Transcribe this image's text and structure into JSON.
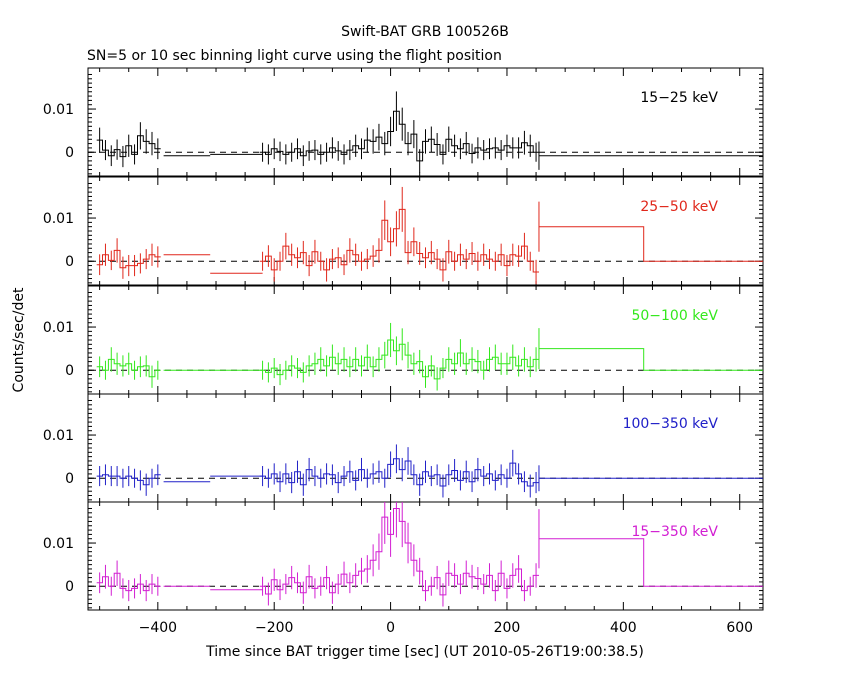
{
  "chart_data": {
    "type": "line",
    "title": "Swift-BAT GRB 100526B",
    "subtitle": "SN=5 or 10 sec binning light curve using the flight position",
    "xlabel": "Time since BAT trigger time [sec] (UT 2010-05-26T19:00:38.5)",
    "ylabel": "Counts/sec/det",
    "xlim": [
      -520,
      640
    ],
    "x_ticks": [
      -400,
      -200,
      0,
      200,
      400,
      600
    ],
    "x_tick_labels": [
      "−400",
      "−200",
      "0",
      "200",
      "400",
      "600"
    ],
    "y_tick_labels": [
      "0.01",
      "0"
    ],
    "y_ticks": [
      0.01,
      0
    ],
    "panels": [
      {
        "name": "15−25 keV",
        "color": "#000000",
        "ylim": [
          -0.0055,
          0.0195
        ],
        "series": [
          {
            "name": "binned",
            "x": [
              -500,
              -490,
              -480,
              -470,
              -460,
              -450,
              -440,
              -430,
              -420,
              -410,
              -400
            ],
            "y": [
              0.0028,
              0.0005,
              -0.0008,
              0.0006,
              -0.001,
              0.0015,
              -0.0005,
              0.0038,
              0.0025,
              0.002,
              0.0008
            ]
          },
          {
            "name": "long-before",
            "x": [
              -390,
              -310
            ],
            "y": [
              -0.0008,
              -0.0008
            ]
          },
          {
            "name": "quiet",
            "x": [
              -310,
              -220
            ],
            "y": [
              -0.0005,
              -0.0005
            ]
          },
          {
            "name": "binned2",
            "x": [
              -220,
              -210,
              -200,
              -190,
              -180,
              -170,
              -160,
              -150,
              -140,
              -130,
              -120,
              -110,
              -100,
              -90,
              -80,
              -70,
              -60,
              -50,
              -40,
              -30,
              -20,
              -10,
              0,
              10,
              20,
              30,
              40,
              50,
              60,
              70,
              80,
              90,
              100,
              110,
              120,
              130,
              140,
              150,
              160,
              170,
              180,
              190,
              200,
              210,
              220,
              230,
              240,
              250
            ],
            "y": [
              0.0,
              -0.0005,
              0.0008,
              0.0002,
              -0.0005,
              0.0,
              0.0008,
              -0.0008,
              0.0003,
              0.0005,
              -0.0005,
              0.0,
              0.001,
              0.0003,
              -0.0005,
              0.0005,
              0.0015,
              0.0008,
              0.0028,
              0.0025,
              0.0035,
              0.002,
              0.0048,
              0.0095,
              0.0065,
              0.002,
              0.0042,
              -0.002,
              0.0025,
              0.003,
              0.0018,
              -0.0005,
              0.003,
              0.0015,
              0.0008,
              0.002,
              -0.0003,
              0.001,
              0.0005,
              0.0008,
              0.001,
              0.0005,
              0.0015,
              0.001,
              0.001,
              0.0022,
              0.0015,
              0.0
            ]
          },
          {
            "name": "tail",
            "x": [
              255,
              435,
              640
            ],
            "y": [
              -0.0008,
              -0.0008,
              0.0
            ]
          }
        ]
      },
      {
        "name": "25−50 keV",
        "color": "#e0271b",
        "ylim": [
          -0.0055,
          0.0195
        ],
        "series": [
          {
            "name": "binned",
            "x": [
              -500,
              -490,
              -480,
              -470,
              -460,
              -450,
              -440,
              -430,
              -420,
              -410,
              -400
            ],
            "y": [
              -0.0008,
              0.0015,
              0.0002,
              0.0025,
              -0.0015,
              -0.001,
              -0.001,
              -0.0005,
              0.0005,
              0.0015,
              0.001
            ]
          },
          {
            "name": "long-before",
            "x": [
              -390,
              -310
            ],
            "y": [
              0.0015,
              0.0015
            ]
          },
          {
            "name": "quiet",
            "x": [
              -310,
              -220
            ],
            "y": [
              -0.0028,
              -0.0028
            ]
          },
          {
            "name": "binned2",
            "x": [
              -220,
              -210,
              -200,
              -190,
              -180,
              -170,
              -160,
              -150,
              -140,
              -130,
              -120,
              -110,
              -100,
              -90,
              -80,
              -70,
              -60,
              -50,
              -40,
              -30,
              -20,
              -10,
              0,
              10,
              20,
              30,
              40,
              50,
              60,
              70,
              80,
              90,
              100,
              110,
              120,
              130,
              140,
              150,
              160,
              170,
              180,
              190,
              200,
              210,
              220,
              230,
              240,
              250
            ],
            "y": [
              0.0,
              0.0012,
              -0.002,
              0.0,
              0.0035,
              0.0015,
              0.0008,
              0.002,
              -0.001,
              0.0022,
              0.0,
              -0.002,
              0.0005,
              0.0008,
              -0.0008,
              0.0025,
              0.0015,
              0.0,
              0.0005,
              0.0012,
              0.0025,
              0.0095,
              0.0045,
              0.0075,
              0.012,
              0.002,
              0.0045,
              0.0018,
              0.0008,
              0.002,
              0.0005,
              -0.002,
              0.0022,
              0.0,
              0.0015,
              0.0005,
              0.0018,
              0.0,
              0.0015,
              0.0005,
              0.0,
              0.0015,
              -0.001,
              0.0015,
              0.0012,
              0.0035,
              0.0,
              -0.0025
            ]
          },
          {
            "name": "tail",
            "x": [
              255,
              435,
              640
            ],
            "y": [
              0.008,
              0.0,
              0.0
            ]
          }
        ]
      },
      {
        "name": "50−100 keV",
        "color": "#33e81c",
        "ylim": [
          -0.0055,
          0.0195
        ],
        "series": [
          {
            "name": "binned",
            "x": [
              -500,
              -490,
              -480,
              -470,
              -460,
              -450,
              -440,
              -430,
              -420,
              -410,
              -400
            ],
            "y": [
              0.0008,
              0.0,
              0.0025,
              0.0015,
              0.001,
              0.0015,
              0.0,
              0.0008,
              0.001,
              -0.0015,
              0.0
            ]
          },
          {
            "name": "long-before",
            "x": [
              -390,
              -310
            ],
            "y": [
              0.0,
              0.0
            ]
          },
          {
            "name": "quiet",
            "x": [
              -310,
              -220
            ],
            "y": [
              0.0,
              0.0
            ]
          },
          {
            "name": "binned2",
            "x": [
              -220,
              -210,
              -200,
              -190,
              -180,
              -170,
              -160,
              -150,
              -140,
              -130,
              -120,
              -110,
              -100,
              -90,
              -80,
              -70,
              -60,
              -50,
              -40,
              -30,
              -20,
              -10,
              0,
              10,
              20,
              30,
              40,
              50,
              60,
              70,
              80,
              90,
              100,
              110,
              120,
              130,
              140,
              150,
              160,
              170,
              180,
              190,
              200,
              210,
              220,
              230,
              240,
              250
            ],
            "y": [
              0.0,
              -0.0005,
              0.0005,
              -0.001,
              0.0,
              0.001,
              0.0005,
              -0.0005,
              0.001,
              0.0015,
              0.0025,
              0.001,
              0.003,
              0.0015,
              0.0025,
              0.0008,
              0.0025,
              0.001,
              0.003,
              0.0008,
              0.0025,
              0.0035,
              0.007,
              0.0045,
              0.006,
              0.0035,
              0.0015,
              0.002,
              -0.0015,
              0.001,
              -0.002,
              0.0005,
              0.0025,
              0.0015,
              0.004,
              0.0015,
              0.0025,
              0.002,
              0.0,
              0.0025,
              0.003,
              0.0015,
              0.0015,
              0.003,
              0.001,
              0.0025,
              0.0008,
              0.0025
            ]
          },
          {
            "name": "tail",
            "x": [
              255,
              435,
              640
            ],
            "y": [
              0.005,
              0.0,
              0.0
            ]
          }
        ]
      },
      {
        "name": "100−350 keV",
        "color": "#2020c8",
        "ylim": [
          -0.0055,
          0.0195
        ],
        "series": [
          {
            "name": "binned",
            "x": [
              -500,
              -490,
              -480,
              -470,
              -460,
              -450,
              -440,
              -430,
              -420,
              -410,
              -400
            ],
            "y": [
              0.0005,
              0.0008,
              0.0005,
              0.0005,
              0.0,
              0.0005,
              0.0,
              -0.0005,
              -0.0015,
              0.0,
              0.0008
            ]
          },
          {
            "name": "long-before",
            "x": [
              -390,
              -310
            ],
            "y": [
              -0.0008,
              -0.0008
            ]
          },
          {
            "name": "quiet",
            "x": [
              -310,
              -220
            ],
            "y": [
              0.0005,
              0.0005
            ]
          },
          {
            "name": "binned2",
            "x": [
              -220,
              -210,
              -200,
              -190,
              -180,
              -170,
              -160,
              -150,
              -140,
              -130,
              -120,
              -110,
              -100,
              -90,
              -80,
              -70,
              -60,
              -50,
              -40,
              -30,
              -20,
              -10,
              0,
              10,
              20,
              30,
              40,
              50,
              60,
              70,
              80,
              90,
              100,
              110,
              120,
              130,
              140,
              150,
              160,
              170,
              180,
              190,
              200,
              210,
              220,
              230,
              240,
              250
            ],
            "y": [
              0.0005,
              0.0,
              0.001,
              -0.0008,
              0.001,
              -0.001,
              0.0015,
              -0.0015,
              0.002,
              0.0005,
              0.0,
              0.001,
              0.0008,
              -0.001,
              0.0005,
              0.0015,
              -0.0005,
              0.002,
              0.0,
              0.001,
              0.0015,
              0.0,
              0.0032,
              0.0045,
              0.002,
              0.004,
              0.0008,
              -0.0015,
              0.0015,
              0.0005,
              0.0008,
              -0.0018,
              0.0008,
              0.0018,
              -0.0005,
              0.0015,
              -0.0008,
              0.002,
              0.0005,
              0.001,
              -0.0005,
              0.0008,
              0.0,
              0.0035,
              0.001,
              -0.0008,
              -0.0018,
              -0.001
            ]
          },
          {
            "name": "tail",
            "x": [
              255,
              435,
              640
            ],
            "y": [
              0.0,
              0.0,
              0.0
            ]
          }
        ]
      },
      {
        "name": "15−350 keV",
        "color": "#d21ed2",
        "ylim": [
          -0.0055,
          0.0195
        ],
        "series": [
          {
            "name": "binned",
            "x": [
              -500,
              -490,
              -480,
              -470,
              -460,
              -450,
              -440,
              -430,
              -420,
              -410,
              -400
            ],
            "y": [
              0.0008,
              0.0022,
              0.0,
              0.003,
              -0.0005,
              -0.001,
              -0.0005,
              0.0005,
              -0.001,
              0.0005,
              0.0
            ]
          },
          {
            "name": "long-before",
            "x": [
              -390,
              -310
            ],
            "y": [
              0.0,
              0.0
            ]
          },
          {
            "name": "quiet",
            "x": [
              -310,
              -220
            ],
            "y": [
              -0.0008,
              -0.0008
            ]
          },
          {
            "name": "binned2",
            "x": [
              -220,
              -210,
              -200,
              -190,
              -180,
              -170,
              -160,
              -150,
              -140,
              -130,
              -120,
              -110,
              -100,
              -90,
              -80,
              -70,
              -60,
              -50,
              -40,
              -30,
              -20,
              -10,
              0,
              10,
              20,
              30,
              40,
              50,
              60,
              70,
              80,
              90,
              100,
              110,
              120,
              130,
              140,
              150,
              160,
              170,
              180,
              190,
              200,
              210,
              220,
              230,
              240,
              250
            ],
            "y": [
              0.0,
              -0.0018,
              0.0015,
              -0.0008,
              0.0005,
              0.002,
              0.0008,
              -0.0015,
              0.0022,
              -0.0005,
              0.0,
              0.002,
              -0.0015,
              0.0005,
              0.0028,
              0.0008,
              0.0025,
              0.0035,
              0.004,
              0.006,
              0.008,
              0.016,
              0.012,
              0.018,
              0.015,
              0.01,
              0.006,
              0.0035,
              -0.001,
              0.0,
              0.002,
              -0.002,
              0.003,
              0.0025,
              0.0005,
              0.003,
              0.0022,
              0.0018,
              0.0005,
              0.0025,
              -0.001,
              0.003,
              -0.0005,
              0.0025,
              0.004,
              -0.001,
              0.0,
              0.0025
            ]
          },
          {
            "name": "tail",
            "x": [
              255,
              435,
              640
            ],
            "y": [
              0.011,
              0.0,
              0.0
            ]
          }
        ]
      }
    ]
  }
}
